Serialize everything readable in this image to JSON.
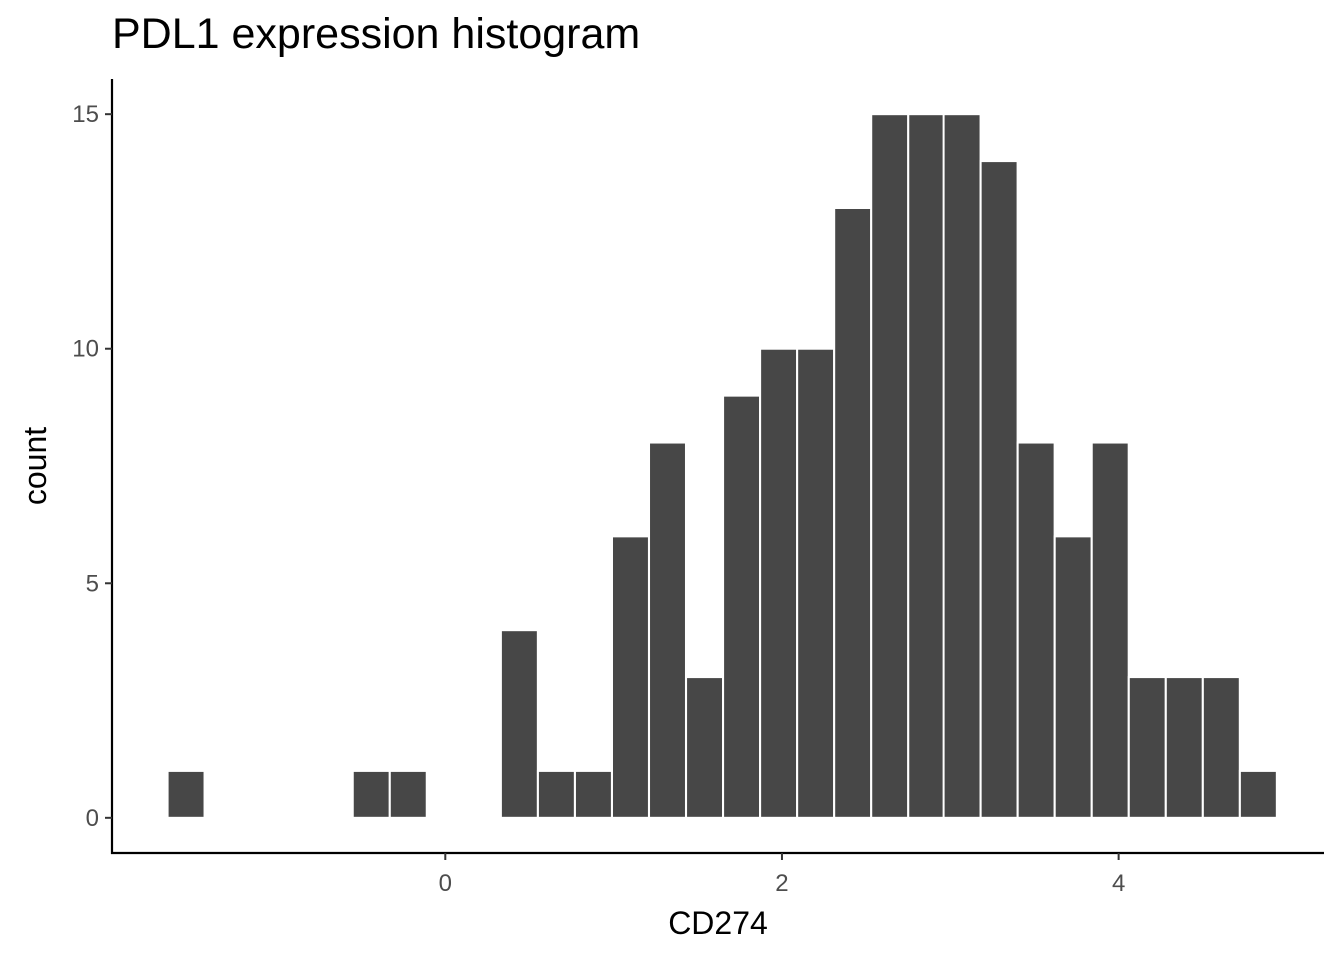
{
  "chart_data": {
    "type": "bar",
    "title": "PDL1 expression histogram",
    "xlabel": "CD274",
    "ylabel": "count",
    "bin_width": 0.2195,
    "bins": [
      {
        "x": -1.54,
        "count": 1
      },
      {
        "x": -1.32,
        "count": 0
      },
      {
        "x": -1.1,
        "count": 0
      },
      {
        "x": -0.88,
        "count": 0
      },
      {
        "x": -0.66,
        "count": 0
      },
      {
        "x": -0.44,
        "count": 1
      },
      {
        "x": -0.22,
        "count": 1
      },
      {
        "x": 0.0,
        "count": 0
      },
      {
        "x": 0.22,
        "count": 0
      },
      {
        "x": 0.44,
        "count": 4
      },
      {
        "x": 0.66,
        "count": 1
      },
      {
        "x": 0.88,
        "count": 1
      },
      {
        "x": 1.1,
        "count": 6
      },
      {
        "x": 1.32,
        "count": 8
      },
      {
        "x": 1.54,
        "count": 3
      },
      {
        "x": 1.76,
        "count": 9
      },
      {
        "x": 1.98,
        "count": 10
      },
      {
        "x": 2.2,
        "count": 10
      },
      {
        "x": 2.42,
        "count": 13
      },
      {
        "x": 2.64,
        "count": 15
      },
      {
        "x": 2.86,
        "count": 15
      },
      {
        "x": 3.07,
        "count": 15
      },
      {
        "x": 3.29,
        "count": 14
      },
      {
        "x": 3.51,
        "count": 8
      },
      {
        "x": 3.73,
        "count": 6
      },
      {
        "x": 3.95,
        "count": 8
      },
      {
        "x": 4.17,
        "count": 3
      },
      {
        "x": 4.39,
        "count": 3
      },
      {
        "x": 4.61,
        "count": 3
      },
      {
        "x": 4.83,
        "count": 1
      }
    ],
    "x_ticks": [
      0,
      2,
      4
    ],
    "x_tick_labels": [
      "0",
      "2",
      "4"
    ],
    "y_ticks": [
      0,
      5,
      10,
      15
    ],
    "y_tick_labels": [
      "0",
      "5",
      "10",
      "15"
    ],
    "xlim": [
      -1.98,
      5.22
    ],
    "ylim": [
      -0.75,
      15.75
    ],
    "bar_color": "#474747",
    "bar_outline": "#ffffff",
    "grid": false,
    "legend": "none"
  }
}
